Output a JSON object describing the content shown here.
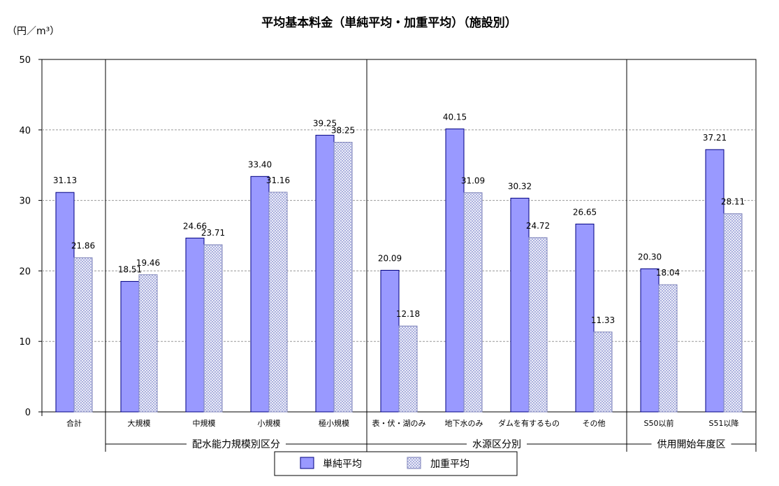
{
  "chart_data": {
    "type": "bar",
    "title": "平均基本料金（単純平均・加重平均）（施設別）",
    "unit_label": "（円／m³）",
    "ylim": [
      0,
      50
    ],
    "yticks": [
      0,
      10,
      20,
      30,
      40,
      50
    ],
    "grid": true,
    "legend_position": "bottom-center",
    "categories": [
      "合計",
      "大規模",
      "中規模",
      "小規模",
      "極小規模",
      "表・伏・湖のみ",
      "地下水のみ",
      "ダムを有するもの",
      "その他",
      "S50以前",
      "S51以降"
    ],
    "series": [
      {
        "name": "単純平均",
        "values": [
          31.13,
          18.51,
          24.66,
          33.4,
          39.25,
          20.09,
          40.15,
          30.32,
          26.65,
          20.3,
          37.21
        ],
        "labels": [
          "31.13",
          "18.51",
          "24.66",
          "33.40",
          "39.25",
          "20.09",
          "40.15",
          "30.32",
          "26.65",
          "20.30",
          "37.21"
        ]
      },
      {
        "name": "加重平均",
        "values": [
          21.86,
          19.46,
          23.71,
          31.16,
          38.25,
          12.18,
          31.09,
          24.72,
          11.33,
          18.04,
          28.11
        ],
        "labels": [
          "21.86",
          "19.46",
          "23.71",
          "31.16",
          "38.25",
          "12.18",
          "31.09",
          "24.72",
          "11.33",
          "18.04",
          "28.11"
        ]
      }
    ],
    "groups": [
      {
        "label": "配水能力規模別区分",
        "categories": [
          "大規模",
          "中規模",
          "小規模",
          "極小規模"
        ]
      },
      {
        "label": "水源区分別",
        "categories": [
          "表・伏・湖のみ",
          "地下水のみ",
          "ダムを有するもの",
          "その他"
        ]
      },
      {
        "label": "供用開始年度区",
        "categories": [
          "S50以前",
          "S51以降"
        ]
      }
    ],
    "colors": {
      "single": "#9999ff",
      "weighted_pattern": "#9aa0d8",
      "bar_border": "#000080",
      "grid": "#999999"
    }
  }
}
